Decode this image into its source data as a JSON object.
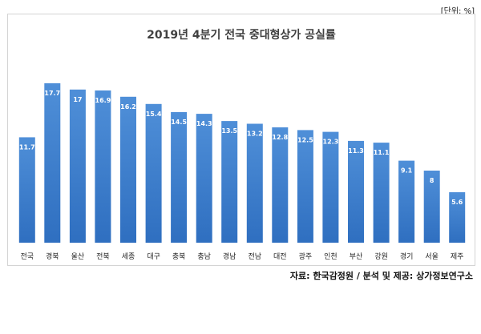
{
  "unit_note": "[단위: %]",
  "source": "자료: 한국감정원 / 분석 및 제공: 상가정보연구소",
  "chart_data": {
    "type": "bar",
    "title": "2019년 4분기 전국 중대형상가 공실률",
    "categories": [
      "전국",
      "경북",
      "울산",
      "전북",
      "세종",
      "대구",
      "충북",
      "충남",
      "경남",
      "전남",
      "대전",
      "광주",
      "인천",
      "부산",
      "강원",
      "경기",
      "서울",
      "제주"
    ],
    "values": [
      11.7,
      17.7,
      17,
      16.9,
      16.2,
      15.4,
      14.5,
      14.3,
      13.5,
      13.2,
      12.8,
      12.5,
      12.3,
      11.3,
      11.1,
      9.1,
      8,
      5.6
    ],
    "value_labels": [
      "11.7",
      "17.7",
      "17",
      "16.9",
      "16.2",
      "15.4",
      "14.5",
      "14.3",
      "13.5",
      "13.2",
      "12.8",
      "12.5",
      "12.3",
      "11.3",
      "11.1",
      "9.1",
      "8",
      "5.6"
    ],
    "ylim": [
      0,
      20
    ],
    "grid": false,
    "legend": "none",
    "colors": {
      "bar_top": "#4f8fd8",
      "bar_bottom": "#2f6fc0",
      "label": "#ffffff",
      "title": "#404040"
    }
  }
}
